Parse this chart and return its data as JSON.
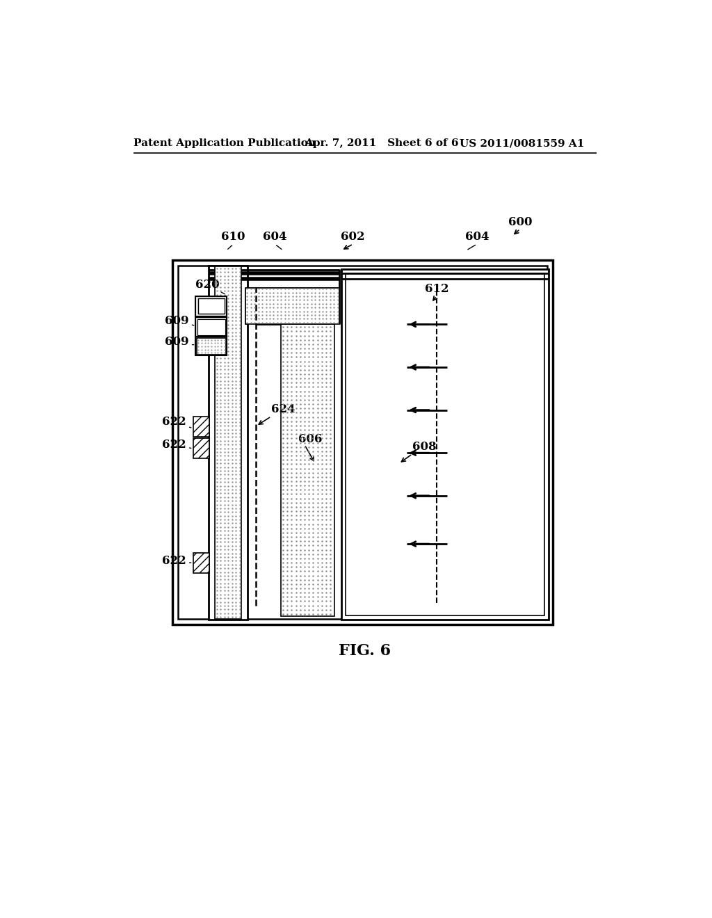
{
  "bg_color": "#ffffff",
  "header_left": "Patent Application Publication",
  "header_mid": "Apr. 7, 2011   Sheet 6 of 6",
  "header_right": "US 2011/0081559 A1",
  "fig_label": "FIG. 6"
}
